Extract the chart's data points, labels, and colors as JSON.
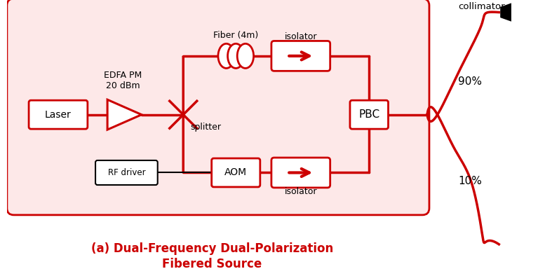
{
  "bg_color": "#fde8e8",
  "line_color": "#cc0000",
  "text_color_red": "#cc0000",
  "title_line1": "(a) Dual-Frequency Dual-Polarization",
  "title_line2": "Fibered Source",
  "label_laser": "Laser",
  "label_edfa": "EDFA PM\n20 dBm",
  "label_splitter": "splitter",
  "label_fiber": "Fiber (4m)",
  "label_isolator_top": "isolator",
  "label_isolator_bot": "isolator",
  "label_pbc": "PBC",
  "label_aom": "AOM",
  "label_rf": "RF driver",
  "label_90": "90%",
  "label_10": "10%",
  "label_collimator": "collimator",
  "figsize": [
    7.67,
    3.94
  ],
  "dpi": 100
}
